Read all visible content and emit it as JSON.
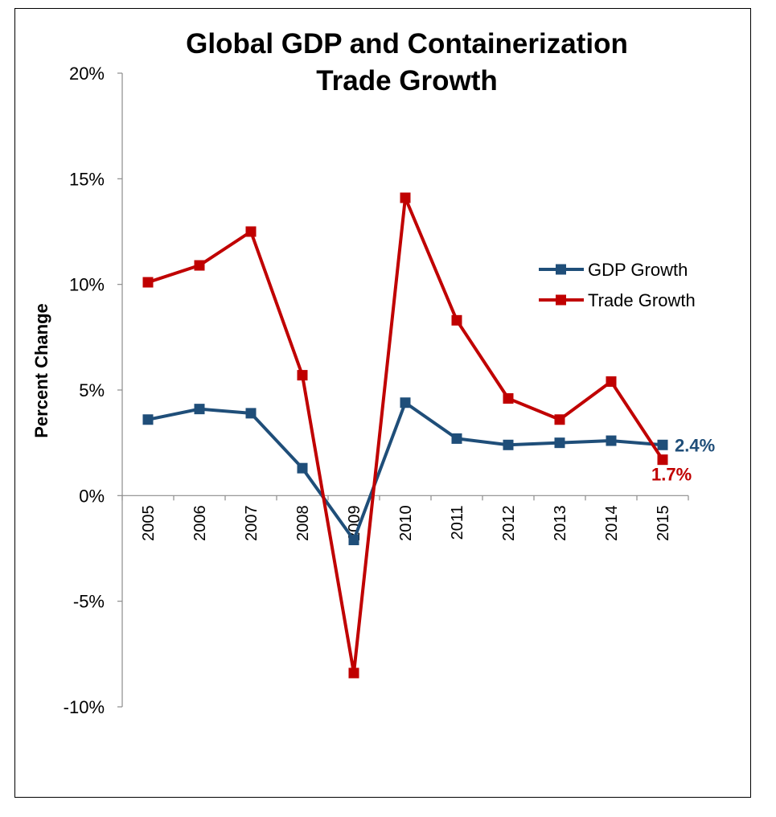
{
  "chart_data": {
    "type": "line",
    "title": [
      "Global GDP and Containerization",
      "Trade Growth"
    ],
    "ylabel": "Percent Change",
    "xlabel": "",
    "categories": [
      "2005",
      "2006",
      "2007",
      "2008",
      "2009",
      "2010",
      "2011",
      "2012",
      "2013",
      "2014",
      "2015"
    ],
    "ylim": [
      -10,
      20
    ],
    "yticks": [
      20,
      15,
      10,
      5,
      0,
      -5,
      -10
    ],
    "ytick_labels": [
      "20%",
      "15%",
      "10%",
      "5%",
      "0%",
      "-5%",
      "-10%"
    ],
    "series": [
      {
        "name": "GDP Growth",
        "color": "#1f4e79",
        "values": [
          3.6,
          4.1,
          3.9,
          1.3,
          -2.1,
          4.4,
          2.7,
          2.4,
          2.5,
          2.6,
          2.4
        ]
      },
      {
        "name": "Trade Growth",
        "color": "#c00000",
        "values": [
          10.1,
          10.9,
          12.5,
          5.7,
          -8.4,
          14.1,
          8.3,
          4.6,
          3.6,
          5.4,
          1.7
        ]
      }
    ],
    "end_labels": [
      "2.4%",
      "1.7%"
    ],
    "legend_position": "right",
    "grid": false
  }
}
